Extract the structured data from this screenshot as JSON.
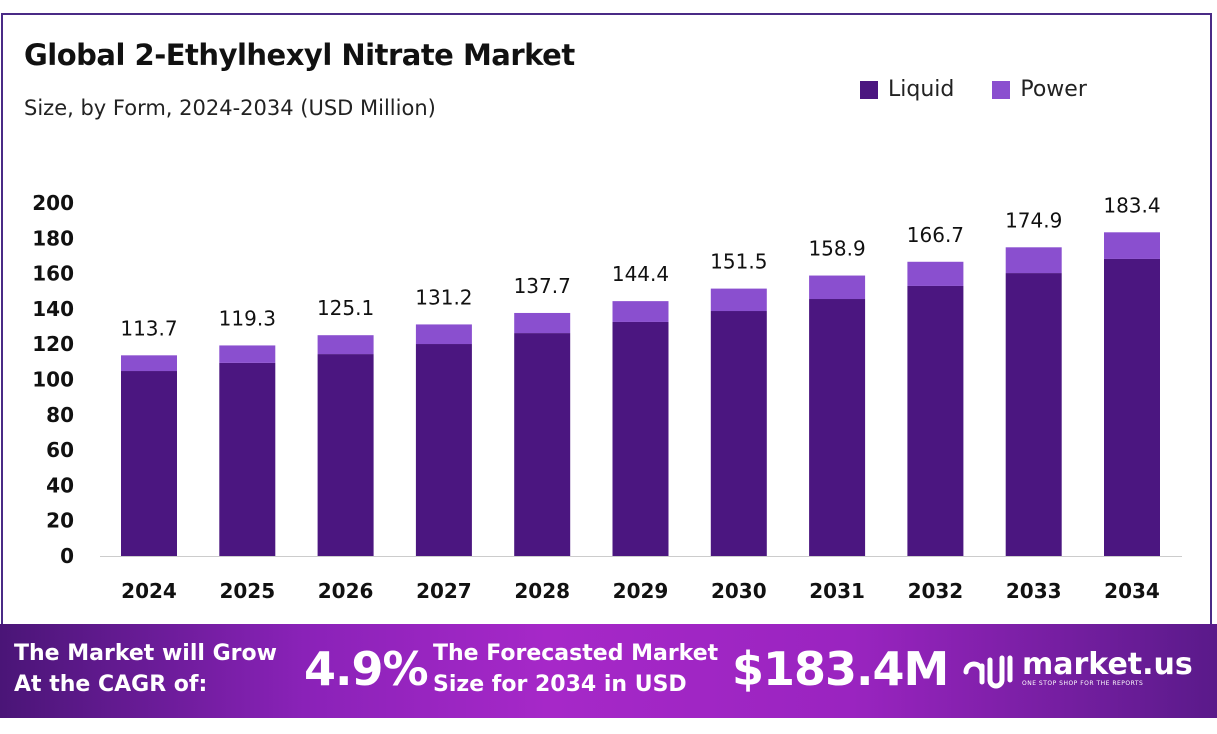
{
  "chart_data": {
    "type": "bar",
    "stacked": true,
    "title": "Global 2-Ethylhexyl Nitrate Market",
    "subtitle": "Size, by Form, 2024-2034 (USD Million)",
    "categories": [
      "2024",
      "2025",
      "2026",
      "2027",
      "2028",
      "2029",
      "2030",
      "2031",
      "2032",
      "2033",
      "2034"
    ],
    "series": [
      {
        "name": "Liquid",
        "color": "#4b1680",
        "values": [
          104.8,
          109.4,
          114.4,
          120.1,
          126.3,
          132.6,
          138.8,
          145.6,
          153.0,
          160.3,
          168.3
        ]
      },
      {
        "name": "Power",
        "color": "#8a4fcf",
        "values": [
          8.9,
          9.9,
          10.7,
          11.1,
          11.4,
          11.8,
          12.7,
          13.3,
          13.7,
          14.6,
          15.1
        ]
      }
    ],
    "totals": [
      "113.7",
      "119.3",
      "125.1",
      "131.2",
      "137.7",
      "144.4",
      "151.5",
      "158.9",
      "166.7",
      "174.9",
      "183.4"
    ],
    "ylim": [
      0,
      200
    ],
    "yticks": [
      "0",
      "20",
      "40",
      "60",
      "80",
      "100",
      "120",
      "140",
      "160",
      "180",
      "200"
    ],
    "grid": false,
    "legend": "top-right"
  },
  "footer": {
    "cagr_label_1": "The Market will Grow",
    "cagr_label_2": "At the CAGR of:",
    "cagr_value": "4.9%",
    "forecast_label_1": "The Forecasted Market",
    "forecast_label_2": "Size for 2034 in USD",
    "forecast_value": "$183.4M",
    "logo_name": "market.us",
    "logo_tagline": "ONE STOP SHOP FOR THE REPORTS"
  }
}
